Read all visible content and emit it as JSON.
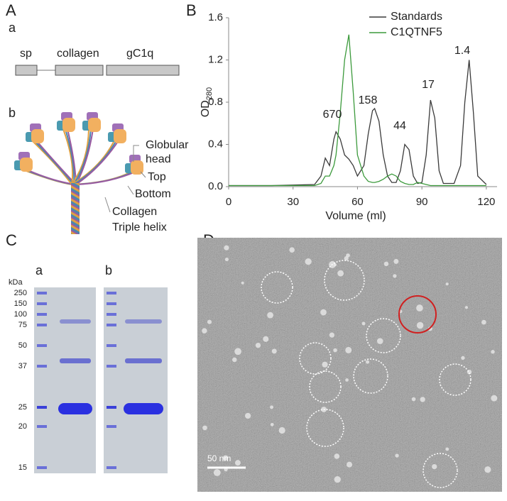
{
  "panel_labels": [
    "A",
    "B",
    "C",
    "D"
  ],
  "panel_a": {
    "sub_labels": [
      "a",
      "b"
    ],
    "domains": [
      "sp",
      "collagen",
      "gC1q"
    ],
    "labels": [
      "Globular",
      "head",
      "Top",
      "Bottom",
      "Collagen",
      "Triple helix"
    ]
  },
  "chart_data": {
    "type": "line",
    "x_label": "Volume (ml)",
    "y_label": "OD",
    "y_label_sub": "280",
    "x": [
      0,
      20,
      40,
      43,
      45,
      47,
      49,
      50,
      52,
      54,
      56,
      58,
      60,
      63,
      65,
      67,
      68,
      70,
      72,
      74,
      76,
      78,
      80,
      82,
      84,
      86,
      88,
      90,
      92,
      94,
      96,
      98,
      100,
      105,
      108,
      110,
      112,
      114,
      116,
      120
    ],
    "series": [
      {
        "name": "Standards",
        "color": "#3a3a3a",
        "values": [
          0.01,
          0.01,
          0.02,
          0.1,
          0.27,
          0.2,
          0.45,
          0.52,
          0.45,
          0.3,
          0.26,
          0.2,
          0.1,
          0.2,
          0.5,
          0.72,
          0.74,
          0.62,
          0.3,
          0.1,
          0.04,
          0.04,
          0.15,
          0.4,
          0.35,
          0.1,
          0.03,
          0.04,
          0.3,
          0.82,
          0.65,
          0.15,
          0.03,
          0.03,
          0.2,
          0.8,
          1.2,
          0.7,
          0.1,
          0.02
        ]
      },
      {
        "name": "C1QTNF5",
        "color": "#3c9a3c",
        "values": [
          0.01,
          0.01,
          0.01,
          0.03,
          0.1,
          0.1,
          0.2,
          0.3,
          0.7,
          1.2,
          1.44,
          0.9,
          0.3,
          0.1,
          0.05,
          0.04,
          0.04,
          0.05,
          0.07,
          0.1,
          0.12,
          0.1,
          0.05,
          0.03,
          0.02,
          0.02,
          0.04,
          0.03,
          0.02,
          0.01,
          0.01,
          0.01,
          0.01,
          0.01,
          0.01,
          0.01,
          0.01,
          0.01,
          0.01,
          0.01
        ]
      }
    ],
    "annotations": [
      "670",
      "158",
      "44",
      "17",
      "1.4"
    ],
    "xlim": [
      0,
      125
    ],
    "xticks": [
      0,
      30,
      60,
      90,
      120
    ],
    "ylim": [
      0,
      1.6
    ],
    "yticks": [
      {
        "value": 0,
        "label": "0.0"
      },
      0.4,
      0.8,
      1.2,
      1.6
    ],
    "legend": "top-right"
  },
  "panel_c": {
    "sub_labels": [
      "a",
      "b"
    ],
    "unit": "kDa",
    "markers": [
      250,
      150,
      100,
      75,
      50,
      37,
      25,
      20,
      15
    ]
  },
  "panel_d": {
    "scale_bar": "50 nm"
  }
}
